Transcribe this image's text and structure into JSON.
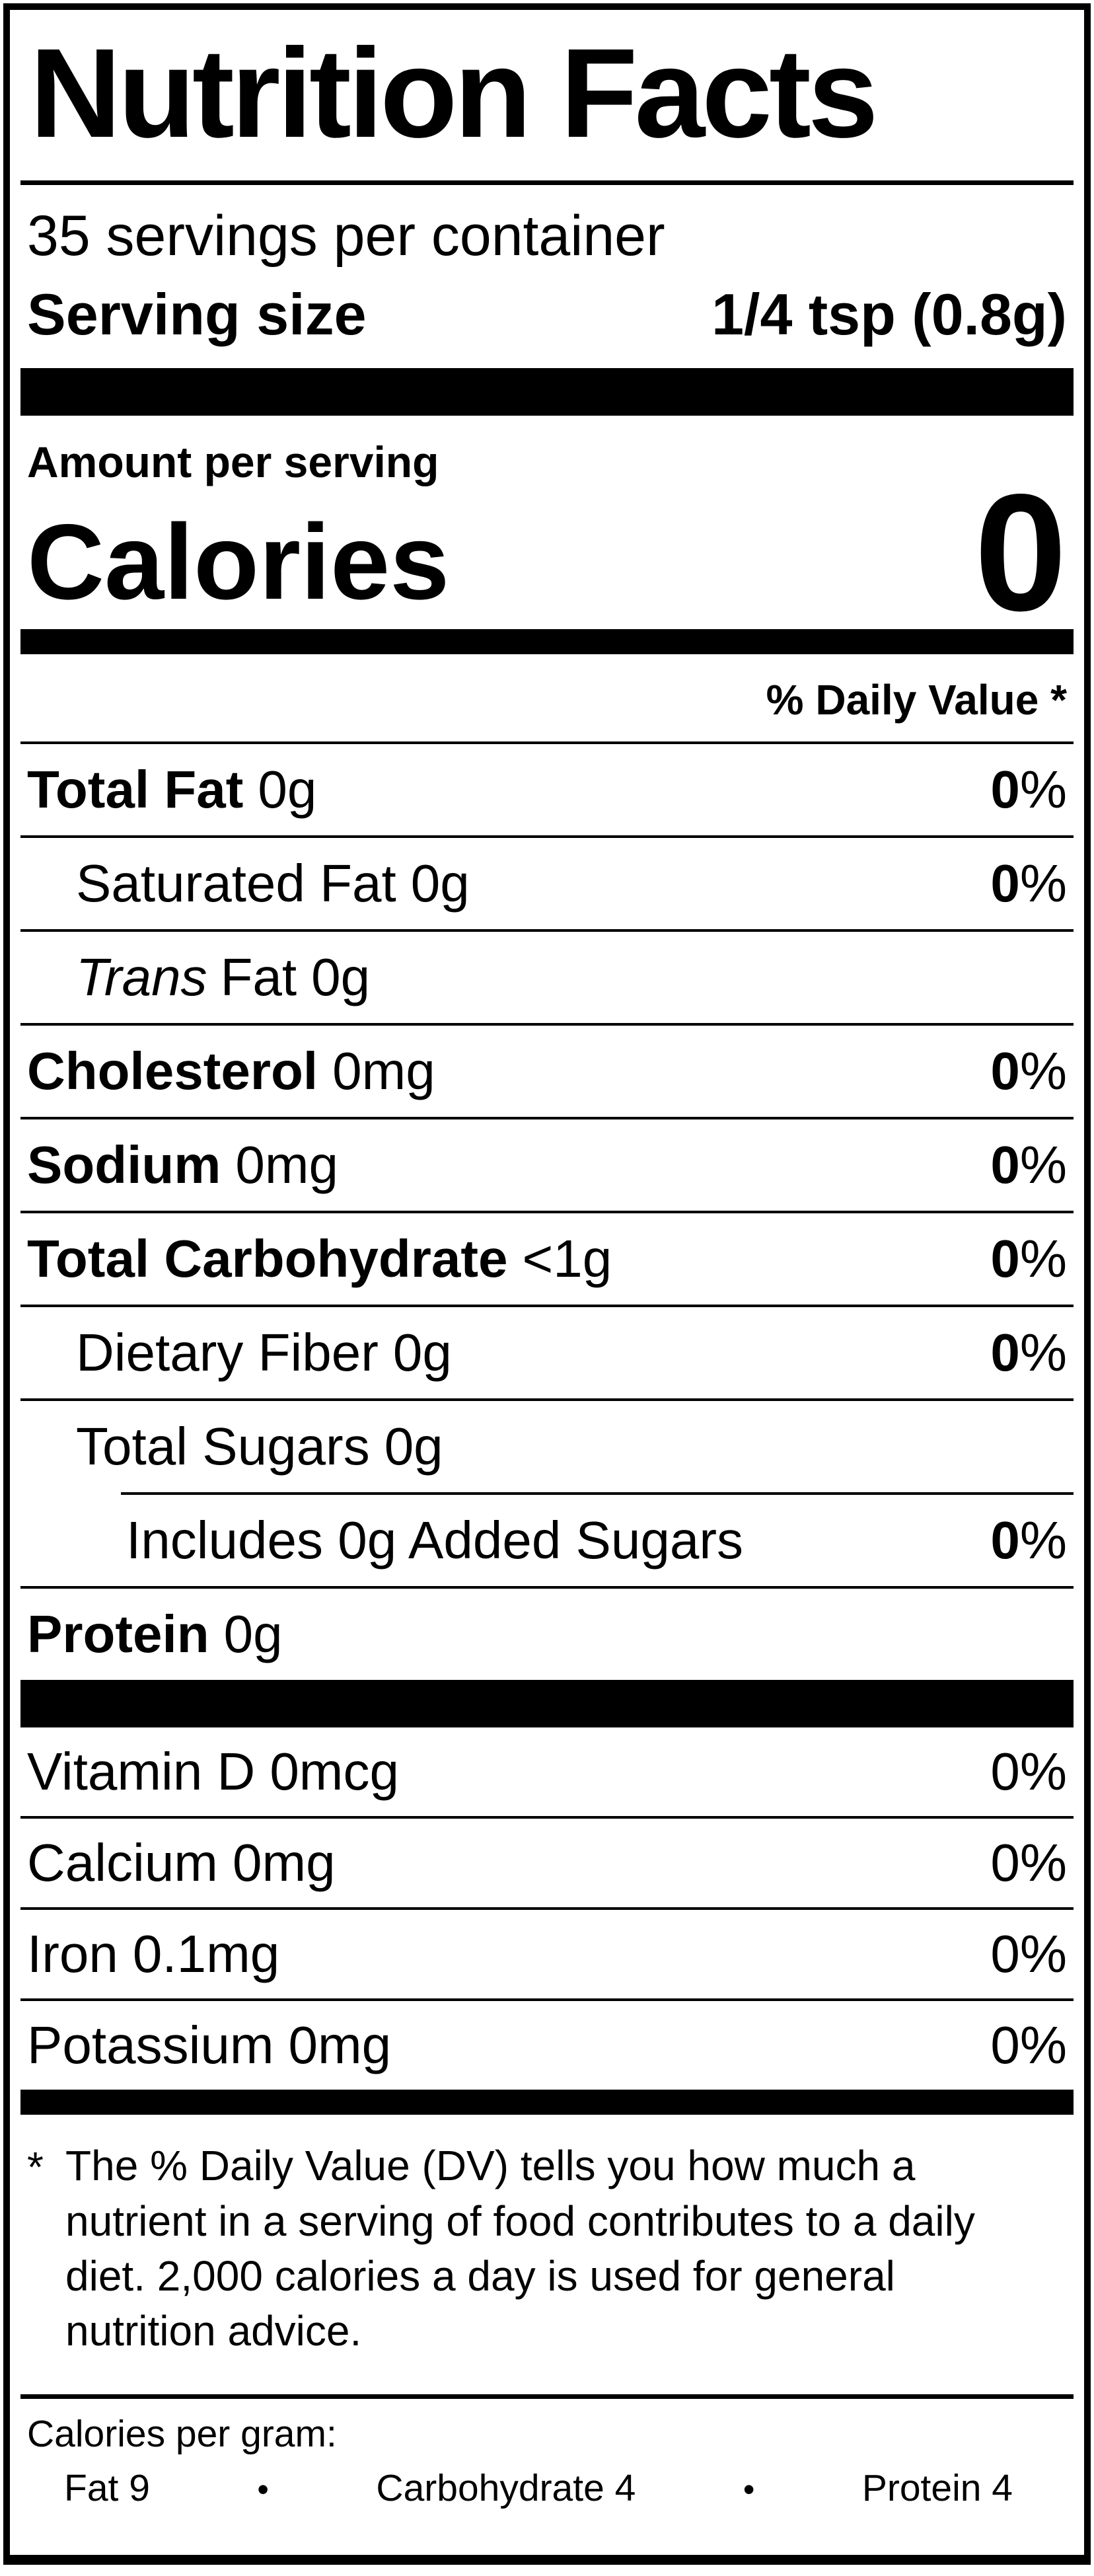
{
  "label": {
    "title": "Nutrition Facts",
    "servings_per_container": "35 servings per container",
    "serving_size": {
      "label": "Serving size",
      "value": "1/4 tsp (0.8g)"
    },
    "amount_per_serving": "Amount per serving",
    "calories": {
      "label": "Calories",
      "value": "0"
    },
    "daily_value_header": "% Daily Value *",
    "percent_sign": "%",
    "nutrients": [
      {
        "name": "Total Fat",
        "amount": "0g",
        "dv": "0"
      },
      {
        "name": "Saturated Fat",
        "amount": "0g",
        "dv": "0"
      },
      {
        "name_italic": "Trans",
        "name_rest": "Fat",
        "amount": "0g"
      },
      {
        "name": "Cholesterol",
        "amount": "0mg",
        "dv": "0"
      },
      {
        "name": "Sodium",
        "amount": "0mg",
        "dv": "0"
      },
      {
        "name": "Total Carbohydrate",
        "amount": "<1g",
        "dv": "0"
      },
      {
        "name": "Dietary Fiber",
        "amount": "0g",
        "dv": "0"
      },
      {
        "name": "Total Sugars",
        "amount": "0g"
      },
      {
        "name": "Includes 0g Added Sugars",
        "dv": "0"
      },
      {
        "name": "Protein",
        "amount": "0g"
      }
    ],
    "micronutrients": [
      {
        "name": "Vitamin D",
        "amount": "0mcg",
        "dv": "0"
      },
      {
        "name": "Calcium",
        "amount": "0mg",
        "dv": "0"
      },
      {
        "name": "Iron",
        "amount": "0.1mg",
        "dv": "0"
      },
      {
        "name": "Potassium",
        "amount": "0mg",
        "dv": "0"
      }
    ],
    "footnote": {
      "marker": "*",
      "text": "The % Daily Value (DV) tells you how much a nutrient in a serving of food contributes to a daily diet. 2,000 calories a day is used for general nutrition advice."
    },
    "calories_per_gram": {
      "heading": "Calories per gram:",
      "separator": "•",
      "items": [
        "Fat 9",
        "Carbohydrate 4",
        "Protein 4"
      ]
    }
  }
}
